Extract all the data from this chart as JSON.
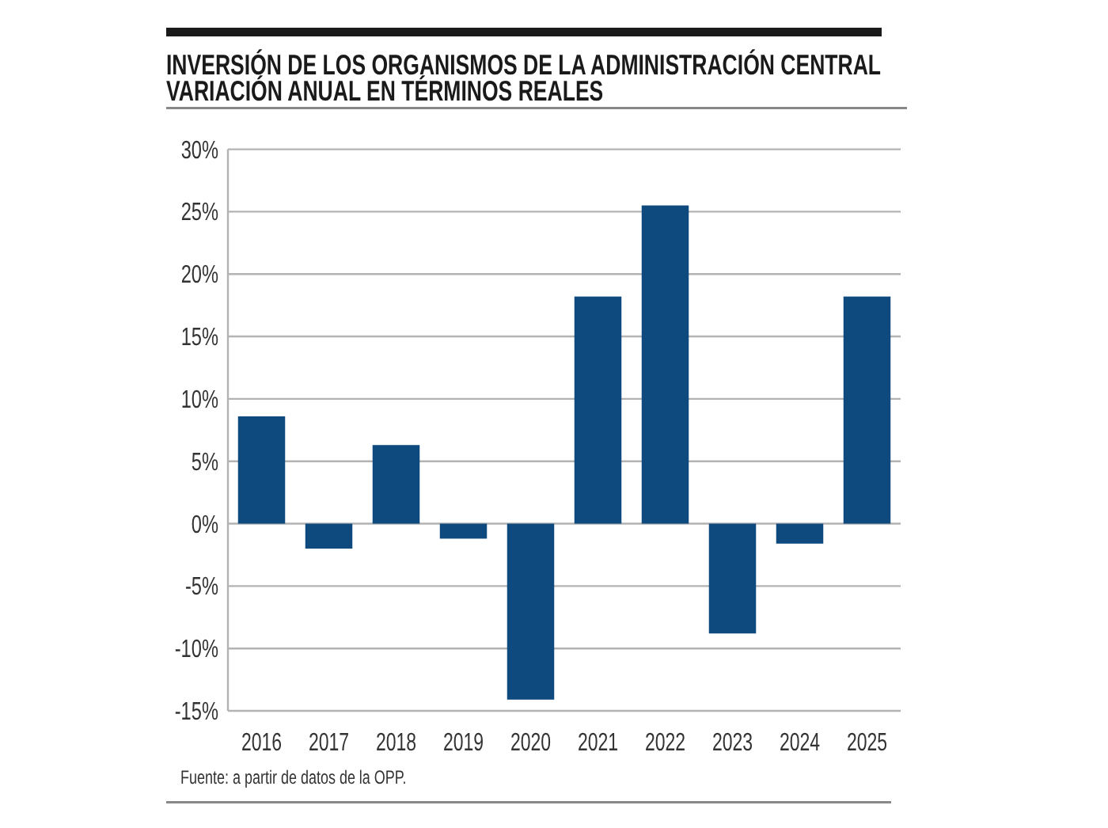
{
  "chart_data": {
    "type": "bar",
    "title": "INVERSIÓN DE LOS ORGANISMOS DE LA ADMINISTRACIÓN CENTRAL",
    "subtitle": "VARIACIÓN ANUAL EN TÉRMINOS REALES",
    "categories": [
      "2016",
      "2017",
      "2018",
      "2019",
      "2020",
      "2021",
      "2022",
      "2023",
      "2024",
      "2025"
    ],
    "values": [
      8.6,
      -2.0,
      6.3,
      -1.2,
      -14.1,
      18.2,
      25.5,
      -8.8,
      -1.6,
      18.2
    ],
    "color": "#0f4a7f",
    "ylim": [
      -15,
      30
    ],
    "yticks": [
      {
        "value": -15,
        "label": "-15%"
      },
      {
        "value": -10,
        "label": "-10%"
      },
      {
        "value": -5,
        "label": "-5%"
      },
      {
        "value": 0,
        "label": "0%"
      },
      {
        "value": 5,
        "label": "5%"
      },
      {
        "value": 10,
        "label": "10%"
      },
      {
        "value": 15,
        "label": "15%"
      },
      {
        "value": 20,
        "label": "20%"
      },
      {
        "value": 25,
        "label": "25%"
      },
      {
        "value": 30,
        "label": "30%"
      }
    ],
    "grid": "y",
    "annotations": [
      "Fuente: a partir de datos de la OPP."
    ]
  }
}
